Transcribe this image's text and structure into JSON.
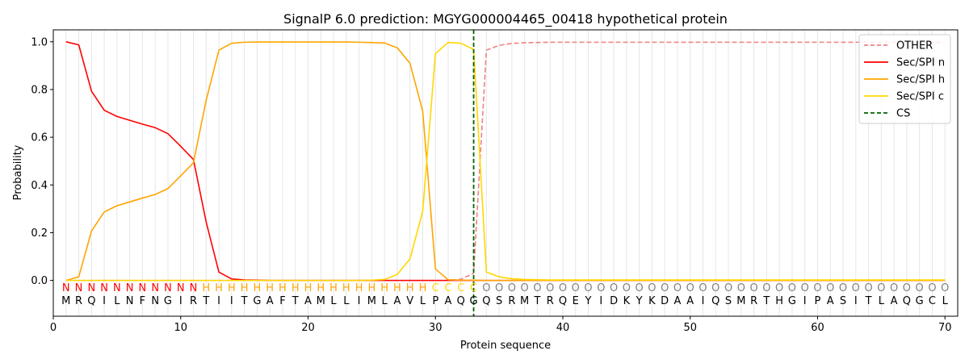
{
  "chart_data": {
    "type": "line",
    "title": "SignalP 6.0 prediction: MGYG000004465_00418 hypothetical protein",
    "xlabel": "Protein sequence",
    "ylabel": "Probability",
    "xlim": [
      0,
      71
    ],
    "ylim": [
      -0.15,
      1.05
    ],
    "xticks": [
      0,
      10,
      20,
      30,
      40,
      50,
      60,
      70
    ],
    "yticks": [
      0.0,
      0.2,
      0.4,
      0.6,
      0.8,
      1.0
    ],
    "ytick_labels": [
      "0.0",
      "0.2",
      "0.4",
      "0.6",
      "0.8",
      "1.0"
    ],
    "grid": "vertical lines at each residue",
    "legend_position": "top-right",
    "sequence": [
      "M",
      "R",
      "Q",
      "I",
      "L",
      "N",
      "F",
      "N",
      "G",
      "I",
      "R",
      "T",
      "I",
      "I",
      "T",
      "G",
      "A",
      "F",
      "T",
      "A",
      "M",
      "L",
      "L",
      "I",
      "M",
      "L",
      "A",
      "V",
      "L",
      "P",
      "A",
      "Q",
      "G",
      "Q",
      "S",
      "R",
      "M",
      "T",
      "R",
      "Q",
      "E",
      "Y",
      "I",
      "D",
      "K",
      "Y",
      "K",
      "D",
      "A",
      "A",
      "I",
      "Q",
      "S",
      "M",
      "R",
      "T",
      "H",
      "G",
      "I",
      "P",
      "A",
      "S",
      "I",
      "T",
      "L",
      "A",
      "Q",
      "G",
      "C",
      "L"
    ],
    "regions": [
      "N",
      "N",
      "N",
      "N",
      "N",
      "N",
      "N",
      "N",
      "N",
      "N",
      "N",
      "H",
      "H",
      "H",
      "H",
      "H",
      "H",
      "H",
      "H",
      "H",
      "H",
      "H",
      "H",
      "H",
      "H",
      "H",
      "H",
      "H",
      "H",
      "C",
      "C",
      "C",
      "C",
      "O",
      "O",
      "O",
      "O",
      "O",
      "O",
      "O",
      "O",
      "O",
      "O",
      "O",
      "O",
      "O",
      "O",
      "O",
      "O",
      "O",
      "O",
      "O",
      "O",
      "O",
      "O",
      "O",
      "O",
      "O",
      "O",
      "O",
      "O",
      "O",
      "O",
      "O",
      "O",
      "O",
      "O",
      "O",
      "O",
      "O"
    ],
    "region_colors": {
      "N": "#ff0000",
      "H": "#ffa500",
      "C": "#ffd700",
      "O": "#808080"
    },
    "cleavage_site": 33,
    "series": [
      {
        "name": "OTHER",
        "color": "#f08080",
        "dash": "dashed",
        "values": [
          0,
          0,
          0,
          0,
          0,
          0,
          0,
          0,
          0,
          0,
          0,
          0,
          0,
          0,
          0,
          0,
          0,
          0,
          0,
          0,
          0,
          0,
          0,
          0,
          0,
          0,
          0,
          0,
          0,
          0,
          0,
          0.005,
          0.03,
          0.965,
          0.985,
          0.993,
          0.996,
          0.997,
          0.998,
          0.998,
          0.998,
          0.998,
          0.998,
          0.998,
          0.998,
          0.998,
          0.998,
          0.998,
          0.998,
          0.998,
          0.998,
          0.998,
          0.998,
          0.998,
          0.998,
          0.998,
          0.998,
          0.998,
          0.998,
          0.998,
          0.998,
          0.998,
          0.998,
          0.998,
          0.998,
          0.998,
          0.998,
          0.998,
          0.998,
          0.998
        ]
      },
      {
        "name": "Sec/SPI n",
        "color": "#ff0000",
        "dash": "solid",
        "values": [
          1.0,
          0.987,
          0.793,
          0.713,
          0.687,
          0.671,
          0.655,
          0.64,
          0.615,
          0.562,
          0.507,
          0.245,
          0.035,
          0.006,
          0.002,
          0.001,
          0,
          0,
          0,
          0,
          0,
          0,
          0,
          0,
          0,
          0,
          0,
          0,
          0,
          0,
          0,
          0,
          0,
          0,
          0,
          0,
          0,
          0,
          0,
          0,
          0,
          0,
          0,
          0,
          0,
          0,
          0,
          0,
          0,
          0,
          0,
          0,
          0,
          0,
          0,
          0,
          0,
          0,
          0,
          0,
          0,
          0,
          0,
          0,
          0,
          0,
          0,
          0,
          0,
          0
        ]
      },
      {
        "name": "Sec/SPI h",
        "color": "#ffa500",
        "dash": "solid",
        "values": [
          0.0,
          0.015,
          0.207,
          0.287,
          0.313,
          0.329,
          0.345,
          0.36,
          0.385,
          0.438,
          0.493,
          0.755,
          0.965,
          0.994,
          0.998,
          0.999,
          0.999,
          0.999,
          0.999,
          0.999,
          0.999,
          0.999,
          0.999,
          0.998,
          0.997,
          0.995,
          0.975,
          0.91,
          0.71,
          0.048,
          0.003,
          0.001,
          0.001,
          0,
          0,
          0,
          0,
          0,
          0,
          0,
          0,
          0,
          0,
          0,
          0,
          0,
          0,
          0,
          0,
          0,
          0,
          0,
          0,
          0,
          0,
          0,
          0,
          0,
          0,
          0,
          0,
          0,
          0,
          0,
          0,
          0,
          0,
          0,
          0,
          0
        ]
      },
      {
        "name": "Sec/SPI c",
        "color": "#ffd700",
        "dash": "solid",
        "values": [
          0,
          0,
          0,
          0,
          0,
          0,
          0,
          0,
          0,
          0,
          0,
          0,
          0,
          0,
          0,
          0,
          0,
          0,
          0,
          0,
          0,
          0,
          0,
          0,
          0.001,
          0.004,
          0.025,
          0.09,
          0.29,
          0.95,
          0.997,
          0.994,
          0.968,
          0.035,
          0.015,
          0.007,
          0.004,
          0.003,
          0.002,
          0.002,
          0.002,
          0.002,
          0.002,
          0.002,
          0.002,
          0.002,
          0.002,
          0.002,
          0.002,
          0.002,
          0.002,
          0.002,
          0.002,
          0.002,
          0.002,
          0.002,
          0.002,
          0.002,
          0.002,
          0.002,
          0.002,
          0.002,
          0.002,
          0.002,
          0.002,
          0.002,
          0.002,
          0.002,
          0.002,
          0.002
        ]
      }
    ],
    "cs_series": {
      "name": "CS",
      "color": "#006400",
      "dash": "dashed"
    }
  }
}
